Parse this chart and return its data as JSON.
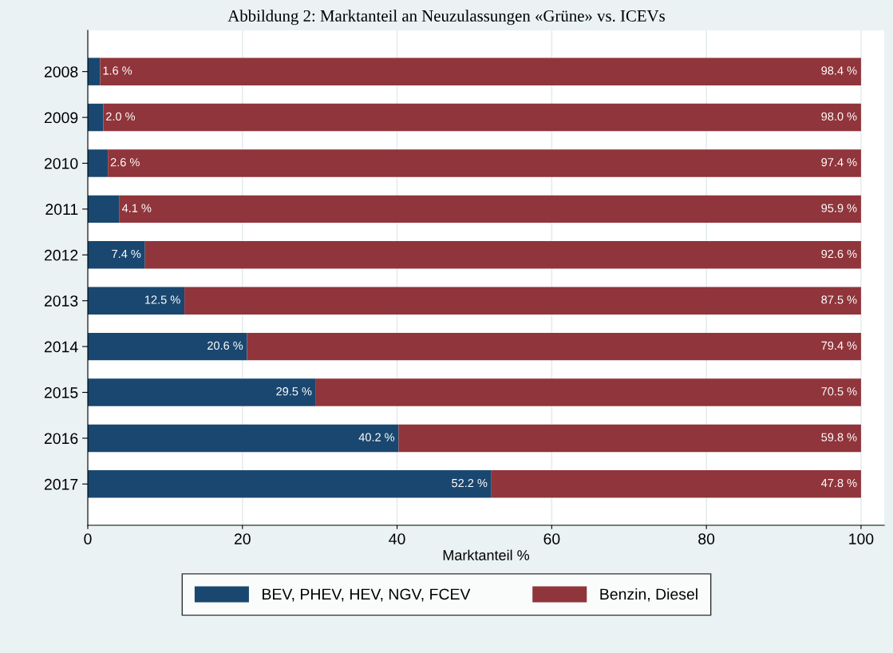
{
  "chart_data": {
    "type": "bar",
    "orientation": "horizontal",
    "stacked": true,
    "title": "Abbildung 2: Marktanteil an Neuzulassungen «Grüne» vs. ICEVs",
    "xlabel": "Marktanteil %",
    "categories": [
      "2008",
      "2009",
      "2010",
      "2011",
      "2012",
      "2013",
      "2014",
      "2015",
      "2016",
      "2017"
    ],
    "series": [
      {
        "name": "BEV, PHEV, HEV, NGV, FCEV",
        "color": "#1a476f",
        "values": [
          1.6,
          2.0,
          2.6,
          4.1,
          7.4,
          12.5,
          20.6,
          29.5,
          40.2,
          52.2
        ],
        "value_labels": [
          "1.6 %",
          "2.0 %",
          "2.6 %",
          "4.1 %",
          "7.4 %",
          "12.5 %",
          "20.6 %",
          "29.5 %",
          "40.2 %",
          "52.2 %"
        ]
      },
      {
        "name": "Benzin, Diesel",
        "color": "#90353b",
        "values": [
          98.4,
          98.0,
          97.4,
          95.9,
          92.6,
          87.5,
          79.4,
          70.5,
          59.8,
          47.8
        ],
        "value_labels": [
          "98.4 %",
          "98.0 %",
          "97.4 %",
          "95.9 %",
          "92.6 %",
          "87.5 %",
          "79.4 %",
          "70.5 %",
          "59.8 %",
          "47.8 %"
        ]
      }
    ],
    "xlim": [
      0,
      103
    ],
    "xticks": [
      0,
      20,
      40,
      60,
      80,
      100
    ],
    "grid": "x",
    "legend": "bottom"
  }
}
